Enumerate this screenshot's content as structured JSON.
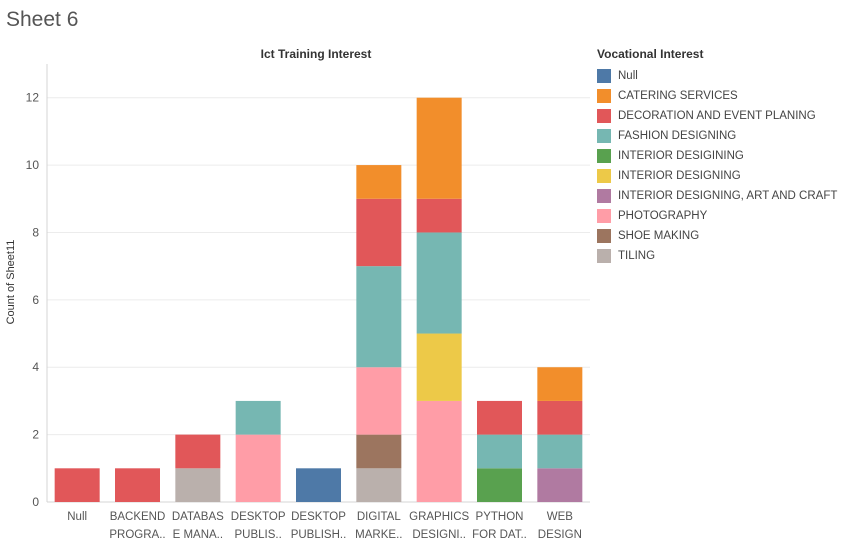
{
  "sheet_title": "Sheet 6",
  "chart_data": {
    "type": "bar",
    "stacked": true,
    "title": "Ict Training Interest",
    "xlabel": "",
    "ylabel": "Count of Sheet11",
    "ylim": [
      0,
      13
    ],
    "yticks": [
      0,
      2,
      4,
      6,
      8,
      10,
      12
    ],
    "grid": true,
    "legend_position": "right",
    "legend_title": "Vocational Interest",
    "categories": [
      [
        "Null"
      ],
      [
        "BACKEND",
        "PROGRA.."
      ],
      [
        "DATABAS",
        "E MANA.."
      ],
      [
        "DESKTOP",
        "PUBLIS.."
      ],
      [
        "DESKTOP",
        "PUBLISH.."
      ],
      [
        "DIGITAL",
        "MARKE.."
      ],
      [
        "GRAPHICS",
        "DESIGNI.."
      ],
      [
        "PYTHON",
        "FOR DAT.."
      ],
      [
        "WEB",
        "DESIGN"
      ]
    ],
    "series": [
      {
        "name": "Null",
        "color": "#4e79a7",
        "values": [
          0,
          0,
          0,
          0,
          1,
          0,
          0,
          0,
          0
        ]
      },
      {
        "name": "CATERING SERVICES",
        "color": "#f28e2b",
        "values": [
          0,
          0,
          0,
          0,
          0,
          1,
          3,
          0,
          1
        ]
      },
      {
        "name": "DECORATION AND EVENT PLANING",
        "color": "#e15759",
        "values": [
          1,
          1,
          1,
          0,
          0,
          2,
          1,
          1,
          1
        ]
      },
      {
        "name": "FASHION DESIGNING",
        "color": "#76b7b2",
        "values": [
          0,
          0,
          0,
          1,
          0,
          3,
          3,
          1,
          1
        ]
      },
      {
        "name": "INTERIOR DESIGINING",
        "color": "#59a14f",
        "values": [
          0,
          0,
          0,
          0,
          0,
          0,
          0,
          1,
          0
        ]
      },
      {
        "name": "INTERIOR DESIGNING",
        "color": "#edc948",
        "values": [
          0,
          0,
          0,
          0,
          0,
          0,
          2,
          0,
          0
        ]
      },
      {
        "name": "INTERIOR DESIGNING, ART AND CRAFT",
        "color": "#b07aa1",
        "values": [
          0,
          0,
          0,
          0,
          0,
          0,
          0,
          0,
          1
        ]
      },
      {
        "name": "PHOTOGRAPHY",
        "color": "#ff9da7",
        "values": [
          0,
          0,
          0,
          2,
          0,
          2,
          3,
          0,
          0
        ]
      },
      {
        "name": "SHOE MAKING",
        "color": "#9c755f",
        "values": [
          0,
          0,
          0,
          0,
          0,
          1,
          0,
          0,
          0
        ]
      },
      {
        "name": "TILING",
        "color": "#bab0ac",
        "values": [
          0,
          0,
          1,
          0,
          0,
          1,
          0,
          0,
          0
        ]
      }
    ],
    "stack_order_bottom_to_top": [
      "TILING",
      "SHOE MAKING",
      "PHOTOGRAPHY",
      "INTERIOR DESIGNING, ART AND CRAFT",
      "INTERIOR DESIGNING",
      "INTERIOR DESIGINING",
      "FASHION DESIGNING",
      "DECORATION AND EVENT PLANING",
      "CATERING SERVICES",
      "Null"
    ]
  }
}
